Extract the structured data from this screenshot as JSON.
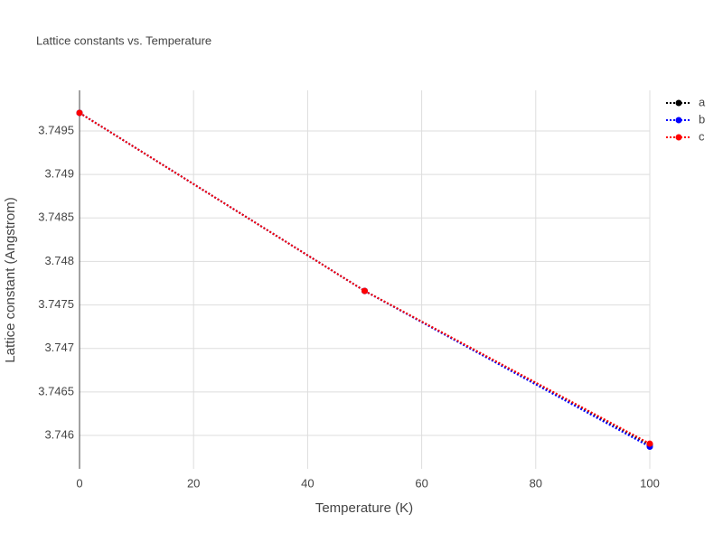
{
  "chart_data": {
    "type": "line",
    "title": "Lattice constants vs. Temperature",
    "x_label": "Temperature (K)",
    "y_label": "Lattice constant (Angstrom)",
    "x": [
      0,
      50,
      100
    ],
    "series": [
      {
        "name": "a",
        "color": "#000000",
        "values": [
          3.749708,
          3.747661,
          3.745895
        ]
      },
      {
        "name": "b",
        "color": "#0000ff",
        "values": [
          3.749708,
          3.747661,
          3.74587
        ]
      },
      {
        "name": "c",
        "color": "#ff0000",
        "values": [
          3.749708,
          3.747661,
          3.745905
        ]
      }
    ],
    "xlim": [
      0,
      100
    ],
    "xticks": [
      0,
      20,
      40,
      60,
      80,
      100
    ],
    "ylim": [
      3.745616,
      3.749967
    ],
    "yticks": [
      3.746,
      3.7465,
      3.747,
      3.7475,
      3.748,
      3.7485,
      3.749,
      3.7495
    ],
    "grid": true,
    "legend": "right"
  }
}
